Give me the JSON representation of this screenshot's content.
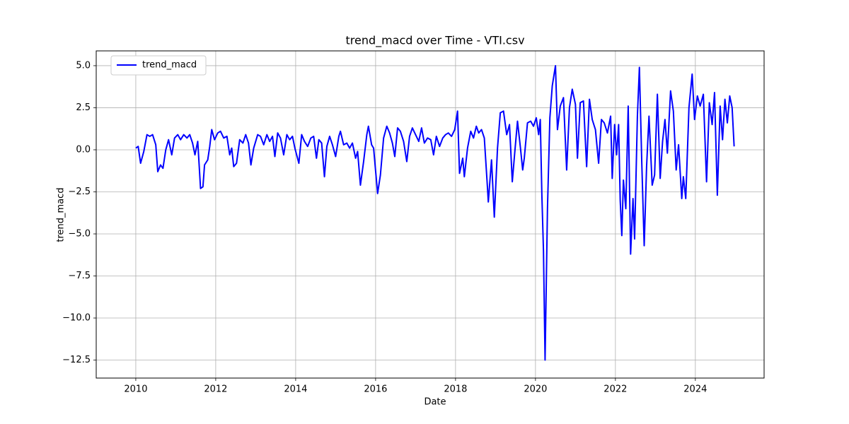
{
  "chart_data": {
    "type": "line",
    "title": "trend_macd over Time - VTI.csv",
    "x_label": "Date",
    "y_label": "trend_macd",
    "grid": true,
    "legend": "upper left",
    "xlim": [
      2009.01,
      2025.72
    ],
    "xticks": [
      2010,
      2012,
      2014,
      2016,
      2018,
      2020,
      2022,
      2024
    ],
    "ylim": [
      -13.57,
      5.88
    ],
    "yticks": [
      {
        "value": -12.5,
        "label": "−12.5"
      },
      {
        "value": -10,
        "label": "−10.0"
      },
      {
        "value": -7.5,
        "label": "−7.5"
      },
      {
        "value": -5,
        "label": "−5.0"
      },
      {
        "value": -2.5,
        "label": "−2.5"
      },
      {
        "value": 0,
        "label": "0.0"
      },
      {
        "value": 2.5,
        "label": "2.5"
      },
      {
        "value": 5,
        "label": "5.0"
      }
    ],
    "x": [
      2010.0,
      2010.06,
      2010.12,
      2010.2,
      2010.28,
      2010.35,
      2010.42,
      2010.5,
      2010.55,
      2010.62,
      2010.68,
      2010.75,
      2010.82,
      2010.9,
      2010.97,
      2011.05,
      2011.12,
      2011.2,
      2011.28,
      2011.35,
      2011.42,
      2011.48,
      2011.55,
      2011.62,
      2011.68,
      2011.72,
      2011.8,
      2011.85,
      2011.9,
      2011.97,
      2012.05,
      2012.12,
      2012.2,
      2012.28,
      2012.35,
      2012.4,
      2012.45,
      2012.52,
      2012.6,
      2012.68,
      2012.75,
      2012.82,
      2012.88,
      2012.95,
      2013.05,
      2013.12,
      2013.2,
      2013.28,
      2013.35,
      2013.42,
      2013.48,
      2013.55,
      2013.62,
      2013.7,
      2013.78,
      2013.85,
      2013.92,
      2013.98,
      2014.08,
      2014.15,
      2014.22,
      2014.3,
      2014.38,
      2014.45,
      2014.52,
      2014.58,
      2014.65,
      2014.72,
      2014.78,
      2014.85,
      2014.92,
      2015.0,
      2015.08,
      2015.12,
      2015.2,
      2015.28,
      2015.35,
      2015.42,
      2015.5,
      2015.55,
      2015.62,
      2015.7,
      2015.78,
      2015.82,
      2015.9,
      2015.95,
      2016.05,
      2016.12,
      2016.2,
      2016.28,
      2016.35,
      2016.42,
      2016.48,
      2016.55,
      2016.62,
      2016.7,
      2016.78,
      2016.85,
      2016.92,
      2017.0,
      2017.08,
      2017.15,
      2017.22,
      2017.3,
      2017.38,
      2017.45,
      2017.52,
      2017.6,
      2017.68,
      2017.75,
      2017.82,
      2017.9,
      2017.98,
      2018.05,
      2018.1,
      2018.18,
      2018.22,
      2018.3,
      2018.38,
      2018.45,
      2018.52,
      2018.58,
      2018.65,
      2018.72,
      2018.8,
      2018.82,
      2018.9,
      2018.97,
      2019.05,
      2019.12,
      2019.2,
      2019.28,
      2019.35,
      2019.42,
      2019.48,
      2019.55,
      2019.62,
      2019.68,
      2019.72,
      2019.8,
      2019.88,
      2019.95,
      2020.02,
      2020.08,
      2020.12,
      2020.16,
      2020.2,
      2020.24,
      2020.3,
      2020.36,
      2020.42,
      2020.5,
      2020.55,
      2020.62,
      2020.7,
      2020.78,
      2020.85,
      2020.92,
      2021.0,
      2021.05,
      2021.12,
      2021.2,
      2021.28,
      2021.35,
      2021.42,
      2021.5,
      2021.58,
      2021.65,
      2021.72,
      2021.8,
      2021.88,
      2021.92,
      2021.98,
      2022.03,
      2022.08,
      2022.12,
      2022.16,
      2022.2,
      2022.26,
      2022.32,
      2022.38,
      2022.44,
      2022.48,
      2022.55,
      2022.6,
      2022.66,
      2022.72,
      2022.78,
      2022.84,
      2022.92,
      2022.98,
      2023.05,
      2023.12,
      2023.18,
      2023.24,
      2023.3,
      2023.38,
      2023.45,
      2023.52,
      2023.58,
      2023.66,
      2023.7,
      2023.76,
      2023.84,
      2023.92,
      2023.98,
      2024.05,
      2024.12,
      2024.2,
      2024.28,
      2024.35,
      2024.42,
      2024.48,
      2024.55,
      2024.62,
      2024.68,
      2024.74,
      2024.8,
      2024.86,
      2024.92,
      2024.97
    ],
    "series": [
      {
        "name": "trend_macd",
        "color": "#0000ff",
        "values": [
          0.1,
          0.2,
          -0.8,
          -0.1,
          0.9,
          0.8,
          0.9,
          0.3,
          -1.3,
          -0.9,
          -1.1,
          0.0,
          0.6,
          -0.3,
          0.7,
          0.9,
          0.6,
          0.9,
          0.7,
          0.9,
          0.4,
          -0.3,
          0.5,
          -2.3,
          -2.2,
          -0.9,
          -0.6,
          0.2,
          1.2,
          0.6,
          1.0,
          1.1,
          0.7,
          0.8,
          -0.3,
          0.1,
          -1.0,
          -0.8,
          0.6,
          0.4,
          0.9,
          0.4,
          -0.9,
          0.1,
          0.9,
          0.8,
          0.3,
          0.9,
          0.5,
          0.8,
          -0.4,
          1.0,
          0.7,
          -0.3,
          0.9,
          0.6,
          0.8,
          0.1,
          -0.8,
          0.9,
          0.5,
          0.2,
          0.7,
          0.8,
          -0.5,
          0.6,
          0.4,
          -1.6,
          0.2,
          0.8,
          0.3,
          -0.4,
          0.8,
          1.1,
          0.3,
          0.4,
          0.1,
          0.4,
          -0.5,
          -0.1,
          -2.1,
          -0.7,
          0.9,
          1.4,
          0.3,
          0.1,
          -2.6,
          -1.5,
          0.7,
          1.4,
          1.0,
          0.4,
          -0.4,
          1.3,
          1.1,
          0.5,
          -0.7,
          0.8,
          1.3,
          0.9,
          0.5,
          1.3,
          0.4,
          0.7,
          0.6,
          -0.3,
          0.8,
          0.2,
          0.7,
          0.9,
          1.0,
          0.8,
          1.2,
          2.3,
          -1.4,
          -0.5,
          -1.6,
          0.1,
          1.1,
          0.7,
          1.4,
          1.0,
          1.2,
          0.7,
          -2.3,
          -3.1,
          -0.6,
          -4.0,
          0.1,
          2.2,
          2.3,
          0.9,
          1.5,
          -1.9,
          -0.2,
          1.7,
          0.2,
          -1.2,
          -0.5,
          1.6,
          1.7,
          1.4,
          1.9,
          0.9,
          1.8,
          -2.7,
          -6.0,
          -12.5,
          -3.5,
          1.9,
          3.8,
          5.0,
          1.2,
          2.6,
          3.1,
          -1.2,
          2.5,
          3.6,
          2.7,
          -0.5,
          2.8,
          2.9,
          -1.0,
          3.0,
          1.8,
          1.2,
          -0.8,
          1.8,
          1.6,
          1.0,
          2.0,
          -1.7,
          1.5,
          -0.3,
          1.5,
          -3.0,
          -5.1,
          -1.8,
          -3.5,
          2.6,
          -6.2,
          -2.9,
          -5.3,
          2.0,
          4.9,
          -0.8,
          -5.7,
          -1.0,
          2.0,
          -2.1,
          -1.5,
          3.3,
          -1.7,
          0.5,
          1.8,
          -0.2,
          3.5,
          2.3,
          -1.2,
          0.3,
          -2.9,
          -1.6,
          -2.9,
          2.5,
          4.5,
          1.8,
          3.2,
          2.6,
          3.3,
          -1.9,
          2.8,
          1.5,
          3.4,
          -2.7,
          2.6,
          0.6,
          3.0,
          1.6,
          3.2,
          2.5,
          0.2
        ]
      }
    ]
  }
}
